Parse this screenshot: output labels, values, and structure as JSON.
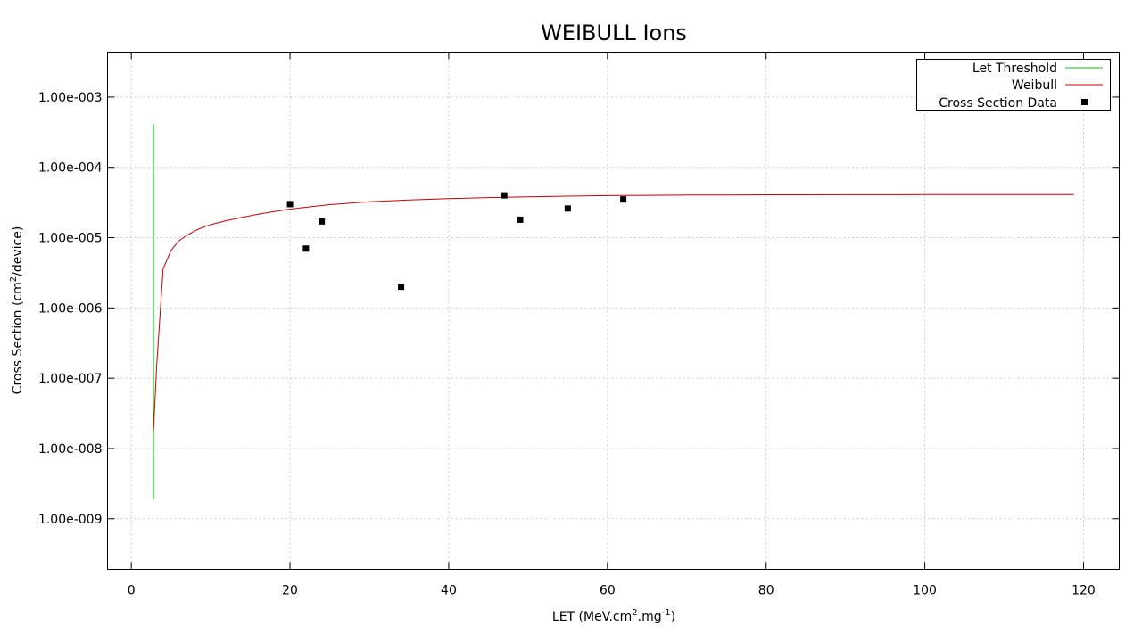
{
  "chart_data": {
    "type": "scatter",
    "title": "WEIBULL Ions",
    "xlabel": {
      "base": "LET (MeV.cm",
      "sup1": "2",
      "mid": ".mg",
      "sup2": "-1",
      "end": ")"
    },
    "ylabel": {
      "base": "Cross Section (cm",
      "sup": "2",
      "end": "/device)"
    },
    "x_scale": "linear",
    "y_scale": "log",
    "xlim": [
      -3,
      124.5
    ],
    "ylim_log10": [
      -9.72,
      -2.36
    ],
    "x_ticks": [
      0,
      20,
      40,
      60,
      80,
      100,
      120
    ],
    "x_tick_labels": [
      "0",
      "20",
      "40",
      "60",
      "80",
      "100",
      "120"
    ],
    "y_ticks": [
      1e-09,
      1e-08,
      1e-07,
      1e-06,
      1e-05,
      0.0001,
      0.001
    ],
    "y_tick_labels": [
      "1.00e-009",
      "1.00e-008",
      "1.00e-007",
      "1.00e-006",
      "1.00e-005",
      "1.00e-004",
      "1.00e-003"
    ],
    "grid": true,
    "legend_position": "top-right",
    "series": [
      {
        "name": "Let Threshold",
        "kind": "line",
        "color": "#00cc00",
        "x": [
          2.8,
          2.8
        ],
        "y": [
          1.9e-09,
          0.00041
        ]
      },
      {
        "name": "Weibull",
        "kind": "line",
        "color": "#cc0000",
        "x": [
          2.8,
          3.2,
          4,
          5,
          6,
          7,
          8,
          9,
          10,
          12,
          14,
          16,
          18,
          20,
          25,
          30,
          35,
          40,
          45,
          50,
          55,
          60,
          65,
          70,
          75,
          80,
          90,
          100,
          110,
          118.8
        ],
        "y": [
          1.8e-08,
          1.5e-07,
          3.6e-06,
          6.6e-06,
          9e-06,
          1.08e-05,
          1.25e-05,
          1.4e-05,
          1.53e-05,
          1.75e-05,
          1.95e-05,
          2.15e-05,
          2.35e-05,
          2.55e-05,
          2.95e-05,
          3.25e-05,
          3.45e-05,
          3.6e-05,
          3.72e-05,
          3.82e-05,
          3.9e-05,
          3.96e-05,
          4e-05,
          4.03e-05,
          4.05e-05,
          4.07e-05,
          4.08e-05,
          4.09e-05,
          4.09e-05,
          4.09e-05
        ]
      },
      {
        "name": "Cross Section Data",
        "kind": "points",
        "color": "#000000",
        "x": [
          20,
          22,
          24,
          34,
          47,
          49,
          55,
          62
        ],
        "y": [
          3e-05,
          7e-06,
          1.7e-05,
          2e-06,
          4e-05,
          1.8e-05,
          2.6e-05,
          3.5e-05
        ]
      }
    ]
  }
}
